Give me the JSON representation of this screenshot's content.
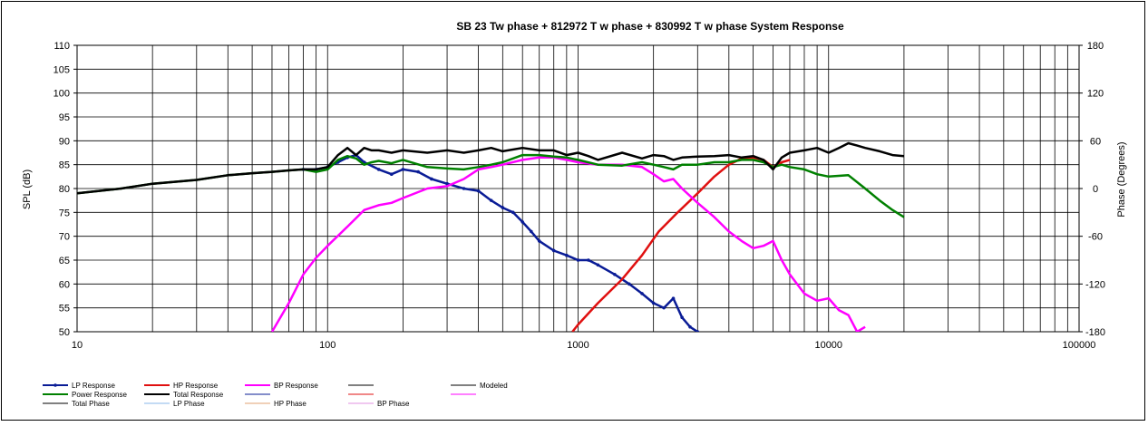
{
  "chart_data": {
    "type": "line",
    "title": "SB 23 Tw phase + 812972 T w phase + 830992 T w phase   System Response",
    "xlabel": "",
    "ylabel": "SPL (dB)",
    "y2label": "Phase (Degrees)",
    "x_scale": "log",
    "xlim": [
      10,
      100000
    ],
    "ylim": [
      50,
      110
    ],
    "y2lim": [
      -180,
      180
    ],
    "grid": true,
    "x_ticks": [
      10,
      100,
      1000,
      10000,
      100000
    ],
    "x_tick_labels": [
      "10",
      "100",
      "1000",
      "10000",
      "100000"
    ],
    "y_ticks": [
      50,
      55,
      60,
      65,
      70,
      75,
      80,
      85,
      90,
      95,
      100,
      105,
      110
    ],
    "y_tick_labels": [
      "50",
      "55",
      "60",
      "65",
      "70",
      "75",
      "80",
      "85",
      "90",
      "95",
      "100",
      "105",
      "110"
    ],
    "y2_ticks": [
      -180,
      -120,
      -60,
      0,
      60,
      120,
      180
    ],
    "y2_tick_labels": [
      "-180",
      "-120",
      "-60",
      "0",
      "60",
      "120",
      "180"
    ],
    "legend_position": "bottom",
    "series": [
      {
        "name": "LP Response",
        "color": "#0a1c96",
        "marker": true,
        "x": [
          80,
          90,
          100,
          110,
          120,
          130,
          140,
          160,
          180,
          200,
          230,
          260,
          300,
          350,
          400,
          450,
          500,
          550,
          600,
          650,
          700,
          800,
          900,
          1000,
          1100,
          1200,
          1400,
          1600,
          1800,
          2000,
          2200,
          2400,
          2600,
          2800,
          3000
        ],
        "y": [
          84,
          84,
          84.5,
          85.5,
          86.5,
          87,
          85.5,
          84,
          83,
          84,
          83.5,
          82,
          81,
          80,
          79.5,
          77.5,
          76,
          75,
          73,
          71,
          69,
          67,
          66,
          65,
          65,
          64,
          62,
          60,
          58,
          56,
          55,
          57,
          53,
          51,
          50
        ]
      },
      {
        "name": "HP Response",
        "color": "#e01010",
        "x": [
          950,
          1000,
          1200,
          1500,
          1800,
          2100,
          2500,
          3000,
          3500,
          4000,
          4500,
          5000,
          5500,
          6000,
          6500,
          7000
        ],
        "y": [
          50,
          51.5,
          56,
          61,
          66,
          71,
          75,
          79,
          82.5,
          85,
          86.3,
          86.5,
          86,
          84.5,
          85.5,
          86
        ]
      },
      {
        "name": "BP Response",
        "color": "#ff00ff",
        "x": [
          60,
          70,
          80,
          90,
          100,
          120,
          140,
          160,
          180,
          200,
          250,
          300,
          350,
          400,
          450,
          500,
          600,
          700,
          800,
          900,
          1000,
          1200,
          1500,
          1800,
          2000,
          2200,
          2400,
          2600,
          3000,
          3500,
          4000,
          4500,
          5000,
          5500,
          6000,
          6500,
          7000,
          8000,
          9000,
          10000,
          11000,
          12000,
          13000,
          14000
        ],
        "y": [
          50,
          56,
          62,
          65.5,
          68,
          72,
          75.5,
          76.5,
          77,
          78,
          80,
          80.5,
          82,
          84,
          84.5,
          85,
          86,
          86.5,
          86.5,
          86,
          85.5,
          85,
          85,
          84.5,
          83,
          81.5,
          82,
          80,
          77,
          74,
          71,
          69,
          67.5,
          68,
          69,
          65,
          62,
          58,
          56.5,
          57,
          54.5,
          53.5,
          50,
          51
        ]
      },
      {
        "name": "Power Response",
        "color": "#008000",
        "x": [
          10,
          15,
          20,
          30,
          40,
          50,
          60,
          70,
          80,
          90,
          100,
          110,
          120,
          130,
          140,
          150,
          160,
          180,
          200,
          250,
          300,
          350,
          400,
          450,
          500,
          600,
          700,
          800,
          900,
          1000,
          1200,
          1500,
          1800,
          2000,
          2200,
          2400,
          2600,
          3000,
          3500,
          4000,
          4500,
          5000,
          5500,
          6000,
          6500,
          7000,
          8000,
          9000,
          10000,
          12000,
          14000,
          16000,
          18000,
          20000
        ],
        "y": [
          79,
          80,
          81,
          81.8,
          82.8,
          83.2,
          83.5,
          83.8,
          84,
          83.5,
          84,
          86,
          86.8,
          86.3,
          85,
          85.5,
          85.8,
          85.3,
          86,
          84.5,
          84.2,
          84,
          84.5,
          85,
          85.5,
          87,
          87,
          86.7,
          86.5,
          86,
          85,
          84.8,
          85.5,
          85,
          84.5,
          84,
          85,
          85,
          85.5,
          85.5,
          86,
          86,
          85.5,
          84.5,
          85,
          84.5,
          84,
          83,
          82.5,
          82.8,
          80,
          77.5,
          75.5,
          74
        ]
      },
      {
        "name": "Total Response",
        "color": "#000000",
        "x": [
          10,
          15,
          20,
          30,
          40,
          50,
          60,
          70,
          80,
          90,
          100,
          110,
          120,
          130,
          140,
          150,
          160,
          180,
          200,
          250,
          300,
          350,
          400,
          450,
          500,
          600,
          700,
          800,
          900,
          1000,
          1100,
          1200,
          1500,
          1800,
          2000,
          2200,
          2400,
          2600,
          3000,
          3500,
          4000,
          4500,
          5000,
          5500,
          6000,
          6500,
          7000,
          8000,
          9000,
          10000,
          11000,
          12000,
          13000,
          14000,
          16000,
          18000,
          20000
        ],
        "y": [
          79,
          80,
          81,
          81.8,
          82.8,
          83.2,
          83.5,
          83.8,
          84,
          84,
          84.5,
          87,
          88.5,
          87,
          88.5,
          88,
          88,
          87.5,
          88,
          87.5,
          88,
          87.5,
          88,
          88.5,
          87.8,
          88.5,
          88,
          88,
          87,
          87.5,
          86.8,
          86,
          87.5,
          86.3,
          87,
          86.8,
          86,
          86.5,
          86.7,
          86.8,
          87,
          86.5,
          86.8,
          86,
          84,
          86.5,
          87.5,
          88,
          88.5,
          87.5,
          88.5,
          89.5,
          89,
          88.5,
          87.8,
          87,
          86.8
        ]
      }
    ],
    "legend": [
      {
        "label": "LP Response",
        "color": "#0a1c96",
        "marker": true
      },
      {
        "label": "HP Response",
        "color": "#e01010"
      },
      {
        "label": "BP Response",
        "color": "#ff00ff"
      },
      {
        "label": "",
        "color": "#808080"
      },
      {
        "label": "Modeled",
        "color": "#808080"
      },
      {
        "label": "Power Response",
        "color": "#008000"
      },
      {
        "label": "Total Response",
        "color": "#000000"
      },
      {
        "label": "",
        "color": "#0a1c96",
        "thin": true
      },
      {
        "label": "",
        "color": "#e01010",
        "thin": true
      },
      {
        "label": "",
        "color": "#ff00ff",
        "thin": true
      },
      {
        "label": "Total Phase",
        "color": "#808080"
      },
      {
        "label": "LP Phase",
        "color": "#87b7e8",
        "thin": true
      },
      {
        "label": "HP Phase",
        "color": "#e0a070",
        "thin": true
      },
      {
        "label": "BP Phase",
        "color": "#e090e0",
        "thin": true
      }
    ]
  }
}
